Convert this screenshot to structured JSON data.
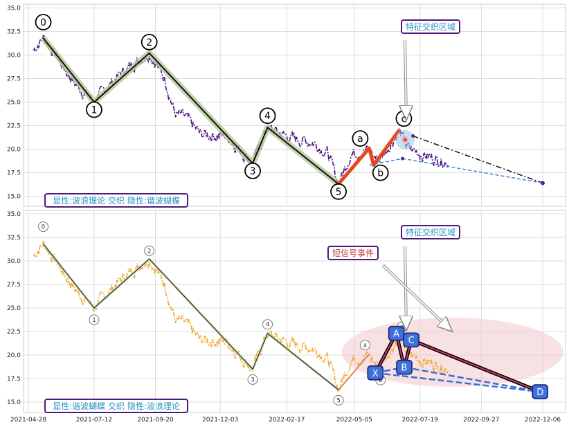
{
  "chart_data": [
    {
      "type": "line",
      "panel": "top",
      "ylim": [
        14,
        35.5
      ],
      "yticks": [
        "15.0",
        "17.5",
        "20.0",
        "22.5",
        "25.0",
        "27.5",
        "30.0",
        "32.5",
        "35.0"
      ],
      "grid": true,
      "price_color": "#4b0f82",
      "wave_points": [
        {
          "label": "0",
          "x": "2021-05-15",
          "y": 31.8
        },
        {
          "label": "1",
          "x": "2021-07-12",
          "y": 25.0
        },
        {
          "label": "2",
          "x": "2021-09-13",
          "y": 30.2
        },
        {
          "label": "3",
          "x": "2022-01-09",
          "y": 18.5
        },
        {
          "label": "4",
          "x": "2022-01-26",
          "y": 22.3
        },
        {
          "label": "5",
          "x": "2022-04-17",
          "y": 16.3
        },
        {
          "label": "a",
          "x": "2022-05-22",
          "y": 20.1
        },
        {
          "label": "b",
          "x": "2022-05-27",
          "y": 18.3
        },
        {
          "label": "c",
          "x": "2022-06-25",
          "y": 22.0
        }
      ],
      "projection": {
        "from": [
          "2022-07-11",
          21.4
        ],
        "to": [
          "2022-12-06",
          16.4
        ]
      },
      "annotations": {
        "feature_zone": "特征交织区域",
        "legend": "显性:波浪理论 交织 隐性:谐波蝴蝶"
      }
    },
    {
      "type": "line",
      "panel": "bottom",
      "ylim": [
        14,
        35.5
      ],
      "yticks": [
        "15.0",
        "17.5",
        "20.0",
        "22.5",
        "25.0",
        "27.5",
        "30.0",
        "32.5",
        "35.0"
      ],
      "xticks": [
        "2021-04-28",
        "2021-07-12",
        "2021-09-20",
        "2021-12-03",
        "2022-02-17",
        "2022-05-05",
        "2022-07-19",
        "2022-09-27",
        "2022-12-06"
      ],
      "grid": true,
      "price_color": "#f0a830",
      "harmonic_points": [
        {
          "label": "X",
          "x": "2022-05-29",
          "y": 18.1
        },
        {
          "label": "A",
          "x": "2022-06-22",
          "y": 22.3
        },
        {
          "label": "B",
          "x": "2022-07-01",
          "y": 18.7
        },
        {
          "label": "C",
          "x": "2022-07-09",
          "y": 21.6
        },
        {
          "label": "D",
          "x": "2022-12-03",
          "y": 16.1
        }
      ],
      "annotations": {
        "feature_zone": "特征交织区域",
        "short_signal": "短信号事件",
        "legend": "显性:谐波蝴蝶 交织 隐性:波浪理论"
      }
    }
  ]
}
